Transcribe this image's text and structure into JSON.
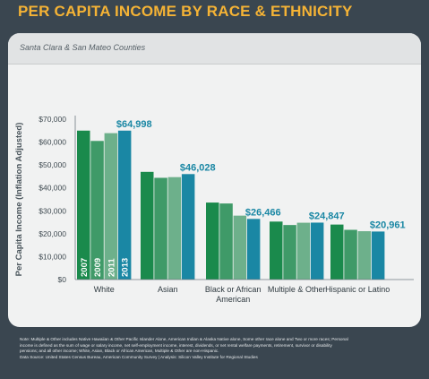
{
  "title": "PER CAPITA INCOME BY RACE & ETHNICITY",
  "subtitle": "Santa Clara & San Mateo Counties",
  "chart_data": {
    "type": "bar",
    "ylabel": "Per Capita Income (Inflation Adjusted)",
    "ylim": [
      0,
      70000
    ],
    "yticks": [
      "$0",
      "$10,000",
      "$20,000",
      "$30,000",
      "$40,000",
      "$50,000",
      "$60,000",
      "$70,000"
    ],
    "categories": [
      "White",
      "Asian",
      "Black or African American",
      "Multiple & Other",
      "Hispanic or Latino"
    ],
    "category_lines": [
      [
        "White"
      ],
      [
        "Asian"
      ],
      [
        "Black or African",
        "American"
      ],
      [
        "Multiple & Other"
      ],
      [
        "Hispanic or Latino"
      ]
    ],
    "series": [
      {
        "name": "2007",
        "color": "#1a8a4c",
        "values": [
          65000,
          47000,
          33600,
          25300,
          24000
        ]
      },
      {
        "name": "2009",
        "color": "#3f9a68",
        "values": [
          60500,
          44400,
          33200,
          23800,
          21700
        ]
      },
      {
        "name": "2011",
        "color": "#6db08b",
        "values": [
          63900,
          44700,
          27900,
          24800,
          21100
        ]
      },
      {
        "name": "2013",
        "color": "#1a87a4",
        "values": [
          64998,
          46028,
          26466,
          24847,
          20961
        ]
      }
    ],
    "data_labels": [
      "$64,998",
      "$46,028",
      "$26,466",
      "$24,847",
      "$20,961"
    ],
    "label_color": "#1a87a4",
    "grid": false,
    "legend": "inside-first-group"
  },
  "footnote": {
    "lines": [
      "Note: Multiple & Other includes Native Hawaiian & Other Pacific Islander Alone, American Indian & Alaska Native alone, Some other race alone and Two or more races; Personal",
      "income is defined as the sum of wage or salary income, net self-employment income, interest, dividends, or net rental welfare payments, retirement, survivor or disability",
      "pensions; and all other income; White, Asian, Black or African American, Multiple & Other are non-Hispanic.",
      "Data Source: United States Census Bureau, American Community Survey | Analysis: Silicon Valley Institute for Regional Studies"
    ]
  }
}
